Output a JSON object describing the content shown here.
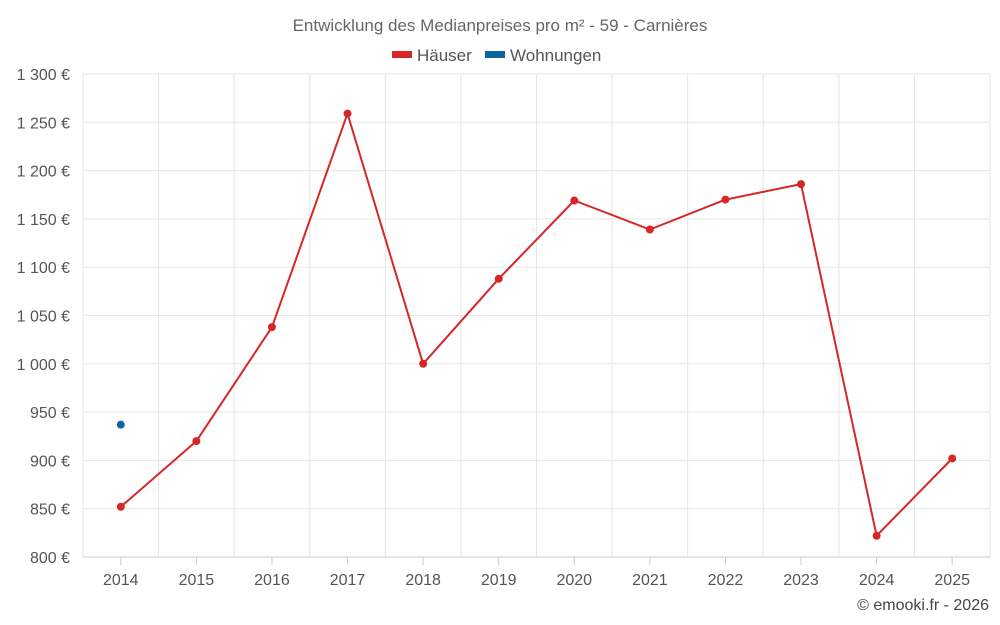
{
  "chart_data": {
    "type": "line",
    "title": "Entwicklung des Medianpreises pro m² - 59 - Carnières",
    "categories": [
      "2014",
      "2015",
      "2016",
      "2017",
      "2018",
      "2019",
      "2020",
      "2021",
      "2022",
      "2023",
      "2024",
      "2025"
    ],
    "series": [
      {
        "name": "Häuser",
        "color": "#d62728",
        "values": [
          852,
          920,
          1038,
          1259,
          1000,
          1088,
          1169,
          1139,
          1170,
          1186,
          822,
          902
        ]
      },
      {
        "name": "Wohnungen",
        "color": "#0e64a0",
        "values": [
          937,
          null,
          null,
          null,
          null,
          null,
          null,
          null,
          null,
          null,
          null,
          null
        ]
      }
    ],
    "ylim": [
      800,
      1300
    ],
    "yticks": [
      800,
      850,
      900,
      950,
      1000,
      1050,
      1100,
      1150,
      1200,
      1250,
      1300
    ],
    "ytick_labels": [
      "800 €",
      "850 €",
      "900 €",
      "950 €",
      "1 000 €",
      "1 050 €",
      "1 100 €",
      "1 150 €",
      "1 200 €",
      "1 250 €",
      "1 300 €"
    ],
    "xlabel": "",
    "ylabel": "",
    "grid": true,
    "legend": "top-center"
  },
  "credit": "© emooki.fr - 2026"
}
